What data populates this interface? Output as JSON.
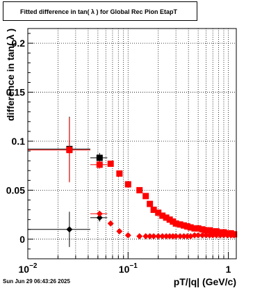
{
  "title": "Fitted difference in tan( λ ) for Global Rec Pion EtapT",
  "date": "Sun Jun 29 06:43:26 2025",
  "colors": {
    "red": "#ff0000",
    "black": "#000000",
    "darkred": "#990000",
    "grid": "#000000"
  },
  "chart_data": {
    "type": "scatter",
    "title": "Fitted difference in tan( λ ) for Global Rec Pion EtapT",
    "xlabel": "pT/|q| (GeV/c)",
    "ylabel": "difference in tan( λ )",
    "x_scale": "log",
    "xlim": [
      0.01,
      1.2
    ],
    "ylim": [
      -0.02,
      0.215
    ],
    "grid": true,
    "x_ticks": [
      {
        "value": 0.01,
        "label": "10⁻²",
        "base": "10",
        "exp": "−2"
      },
      {
        "value": 0.1,
        "label": "10⁻¹",
        "base": "10",
        "exp": "−1"
      },
      {
        "value": 1,
        "label": "1",
        "base": "1",
        "exp": ""
      }
    ],
    "y_ticks": [
      {
        "value": 0,
        "label": "0"
      },
      {
        "value": 0.05,
        "label": "0.05"
      },
      {
        "value": 0.1,
        "label": "0.1"
      },
      {
        "value": 0.15,
        "label": "0.15"
      },
      {
        "value": 0.2,
        "label": "0.2"
      }
    ],
    "series": [
      {
        "color": "#000000",
        "marker": "square",
        "points": [
          {
            "x": 0.026,
            "xlo": 0.01,
            "xhi": 0.042,
            "y": 0.092,
            "yerr": 0.033
          },
          {
            "x": 0.052,
            "xlo": 0.042,
            "xhi": 0.062,
            "y": 0.083,
            "yerr": 0.005
          }
        ]
      },
      {
        "color": "#ff0000",
        "marker": "square",
        "points": [
          {
            "x": 0.026,
            "xlo": 0.01,
            "xhi": 0.042,
            "y": 0.091,
            "yerr": 0.033
          },
          {
            "x": 0.052,
            "xlo": 0.042,
            "xhi": 0.062,
            "y": 0.076,
            "yerr": 0.004
          },
          {
            "x": 0.067,
            "y": 0.077
          },
          {
            "x": 0.082,
            "y": 0.067
          },
          {
            "x": 0.1,
            "y": 0.056
          },
          {
            "x": 0.13,
            "y": 0.05
          },
          {
            "x": 0.15,
            "y": 0.044
          },
          {
            "x": 0.165,
            "y": 0.036
          },
          {
            "x": 0.18,
            "y": 0.03
          },
          {
            "x": 0.2,
            "y": 0.027
          },
          {
            "x": 0.22,
            "y": 0.024
          },
          {
            "x": 0.24,
            "y": 0.022
          },
          {
            "x": 0.26,
            "y": 0.02
          },
          {
            "x": 0.28,
            "y": 0.018
          },
          {
            "x": 0.3,
            "y": 0.016
          },
          {
            "x": 0.33,
            "y": 0.015
          },
          {
            "x": 0.36,
            "y": 0.014
          },
          {
            "x": 0.39,
            "y": 0.013
          },
          {
            "x": 0.42,
            "y": 0.012
          },
          {
            "x": 0.46,
            "y": 0.011
          },
          {
            "x": 0.5,
            "y": 0.011
          },
          {
            "x": 0.55,
            "y": 0.01
          },
          {
            "x": 0.6,
            "y": 0.009
          },
          {
            "x": 0.65,
            "y": 0.009
          },
          {
            "x": 0.7,
            "y": 0.008
          },
          {
            "x": 0.76,
            "y": 0.008
          },
          {
            "x": 0.83,
            "y": 0.007
          },
          {
            "x": 0.9,
            "y": 0.007
          },
          {
            "x": 0.98,
            "y": 0.006
          },
          {
            "x": 1.06,
            "y": 0.006
          },
          {
            "x": 1.14,
            "y": 0.005
          }
        ]
      },
      {
        "color": "#000000",
        "marker": "diamond",
        "points": [
          {
            "x": 0.026,
            "xlo": 0.01,
            "xhi": 0.042,
            "y": 0.01,
            "yerr": 0.018
          },
          {
            "x": 0.052,
            "xlo": 0.042,
            "xhi": 0.062,
            "y": 0.022,
            "yerr": 0.004
          }
        ]
      },
      {
        "color": "#ff0000",
        "marker": "diamond",
        "points": [
          {
            "x": 0.052,
            "xlo": 0.042,
            "xhi": 0.062,
            "y": 0.026,
            "yerr": 0.003
          },
          {
            "x": 0.067,
            "y": 0.016
          },
          {
            "x": 0.082,
            "y": 0.008
          },
          {
            "x": 0.1,
            "y": 0.004
          },
          {
            "x": 0.13,
            "y": 0.003
          },
          {
            "x": 0.15,
            "y": 0.003
          },
          {
            "x": 0.165,
            "y": 0.003
          },
          {
            "x": 0.18,
            "y": 0.003
          },
          {
            "x": 0.2,
            "y": 0.003
          },
          {
            "x": 0.22,
            "y": 0.003
          },
          {
            "x": 0.24,
            "y": 0.003
          },
          {
            "x": 0.26,
            "y": 0.003
          },
          {
            "x": 0.28,
            "y": 0.003
          },
          {
            "x": 0.3,
            "y": 0.003
          },
          {
            "x": 0.33,
            "y": 0.003
          },
          {
            "x": 0.36,
            "y": 0.003
          },
          {
            "x": 0.39,
            "y": 0.003
          },
          {
            "x": 0.42,
            "y": 0.003
          },
          {
            "x": 0.46,
            "y": 0.004
          },
          {
            "x": 0.5,
            "y": 0.004
          },
          {
            "x": 0.55,
            "y": 0.004
          },
          {
            "x": 0.6,
            "y": 0.004
          },
          {
            "x": 0.65,
            "y": 0.004
          },
          {
            "x": 0.7,
            "y": 0.004
          },
          {
            "x": 0.76,
            "y": 0.004
          },
          {
            "x": 0.83,
            "y": 0.004
          },
          {
            "x": 0.9,
            "y": 0.004
          },
          {
            "x": 0.98,
            "y": 0.004
          },
          {
            "x": 1.06,
            "y": 0.004
          },
          {
            "x": 1.14,
            "y": 0.004
          }
        ]
      }
    ]
  }
}
